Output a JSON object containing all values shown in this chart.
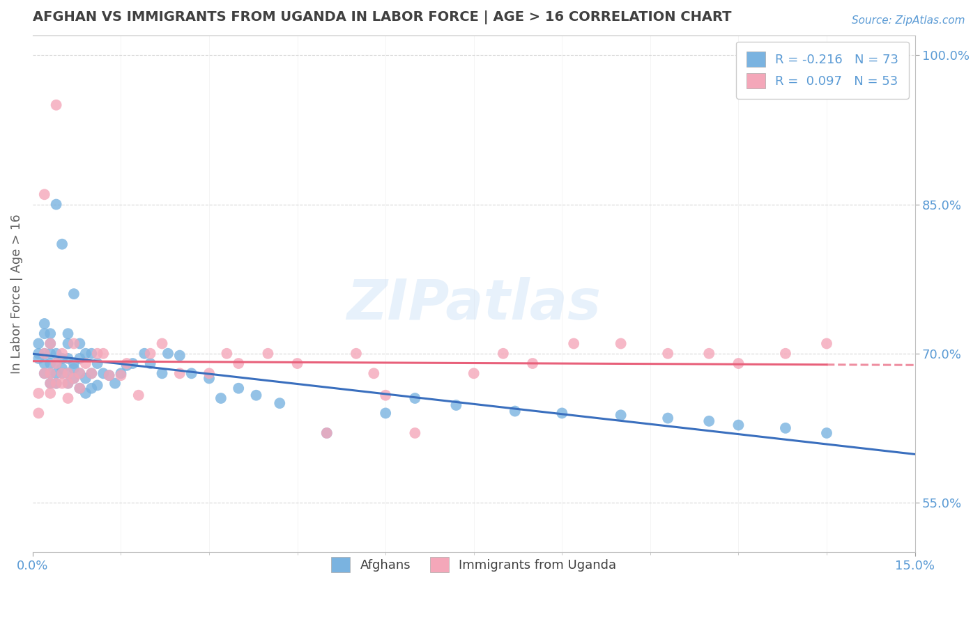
{
  "title": "AFGHAN VS IMMIGRANTS FROM UGANDA IN LABOR FORCE | AGE > 16 CORRELATION CHART",
  "source": "Source: ZipAtlas.com",
  "ylabel": "In Labor Force | Age > 16",
  "xlim": [
    0.0,
    0.15
  ],
  "ylim": [
    0.5,
    1.02
  ],
  "xticks": [
    0.0,
    0.15
  ],
  "xticklabels": [
    "0.0%",
    "15.0%"
  ],
  "yticks": [
    0.55,
    0.7,
    0.85,
    1.0
  ],
  "yticklabels": [
    "55.0%",
    "70.0%",
    "85.0%",
    "100.0%"
  ],
  "afghan_color": "#7ab3e0",
  "uganda_color": "#f4a7b9",
  "afghan_R": -0.216,
  "afghan_N": 73,
  "uganda_R": 0.097,
  "uganda_N": 53,
  "afghan_line_color": "#3a6fbe",
  "uganda_line_color": "#e8607a",
  "watermark": "ZIPatlas",
  "background_color": "#ffffff",
  "title_color": "#404040",
  "tick_color": "#5b9bd5",
  "afghan_x": [
    0.001,
    0.001,
    0.001,
    0.002,
    0.002,
    0.002,
    0.002,
    0.002,
    0.003,
    0.003,
    0.003,
    0.003,
    0.003,
    0.003,
    0.004,
    0.004,
    0.004,
    0.004,
    0.004,
    0.005,
    0.005,
    0.005,
    0.005,
    0.006,
    0.006,
    0.006,
    0.006,
    0.006,
    0.007,
    0.007,
    0.007,
    0.007,
    0.008,
    0.008,
    0.008,
    0.008,
    0.009,
    0.009,
    0.009,
    0.01,
    0.01,
    0.01,
    0.011,
    0.011,
    0.012,
    0.013,
    0.014,
    0.015,
    0.016,
    0.017,
    0.019,
    0.02,
    0.022,
    0.023,
    0.025,
    0.027,
    0.03,
    0.032,
    0.035,
    0.038,
    0.042,
    0.05,
    0.06,
    0.065,
    0.072,
    0.082,
    0.09,
    0.1,
    0.108,
    0.115,
    0.12,
    0.128,
    0.135
  ],
  "afghan_y": [
    0.695,
    0.7,
    0.71,
    0.68,
    0.69,
    0.7,
    0.72,
    0.73,
    0.67,
    0.68,
    0.69,
    0.7,
    0.71,
    0.72,
    0.67,
    0.68,
    0.69,
    0.7,
    0.85,
    0.68,
    0.685,
    0.695,
    0.81,
    0.67,
    0.68,
    0.695,
    0.71,
    0.72,
    0.675,
    0.685,
    0.69,
    0.76,
    0.665,
    0.68,
    0.695,
    0.71,
    0.66,
    0.675,
    0.7,
    0.665,
    0.68,
    0.7,
    0.668,
    0.69,
    0.68,
    0.678,
    0.67,
    0.68,
    0.688,
    0.69,
    0.7,
    0.69,
    0.68,
    0.7,
    0.698,
    0.68,
    0.675,
    0.655,
    0.665,
    0.658,
    0.65,
    0.62,
    0.64,
    0.655,
    0.648,
    0.642,
    0.64,
    0.638,
    0.635,
    0.632,
    0.628,
    0.625,
    0.62
  ],
  "uganda_x": [
    0.001,
    0.001,
    0.002,
    0.002,
    0.002,
    0.003,
    0.003,
    0.003,
    0.003,
    0.004,
    0.004,
    0.004,
    0.005,
    0.005,
    0.005,
    0.006,
    0.006,
    0.006,
    0.007,
    0.007,
    0.008,
    0.008,
    0.009,
    0.01,
    0.011,
    0.012,
    0.013,
    0.015,
    0.016,
    0.018,
    0.02,
    0.022,
    0.025,
    0.03,
    0.033,
    0.035,
    0.04,
    0.045,
    0.05,
    0.055,
    0.058,
    0.06,
    0.065,
    0.075,
    0.08,
    0.085,
    0.092,
    0.1,
    0.108,
    0.115,
    0.12,
    0.128,
    0.135
  ],
  "uganda_y": [
    0.66,
    0.64,
    0.68,
    0.7,
    0.86,
    0.66,
    0.67,
    0.68,
    0.71,
    0.67,
    0.69,
    0.95,
    0.67,
    0.68,
    0.7,
    0.655,
    0.67,
    0.68,
    0.675,
    0.71,
    0.665,
    0.68,
    0.69,
    0.68,
    0.7,
    0.7,
    0.678,
    0.678,
    0.69,
    0.658,
    0.7,
    0.71,
    0.68,
    0.68,
    0.7,
    0.69,
    0.7,
    0.69,
    0.62,
    0.7,
    0.68,
    0.658,
    0.62,
    0.68,
    0.7,
    0.69,
    0.71,
    0.71,
    0.7,
    0.7,
    0.69,
    0.7,
    0.71
  ]
}
